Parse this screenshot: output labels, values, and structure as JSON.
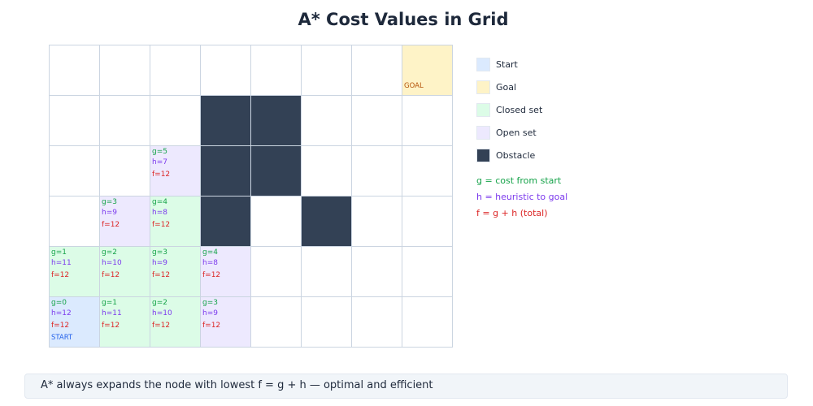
{
  "title": "A* Cost Values in Grid",
  "colors": {
    "start": "#dbeafe",
    "goal": "#fef3c7",
    "closed": "#dcfce7",
    "open": "#ede9fe",
    "obstacle": "#334155",
    "empty": "#ffffff",
    "g": "#16a34a",
    "h": "#7c3aed",
    "f": "#dc2626",
    "start_label": "#2563eb",
    "goal_label": "#b45309"
  },
  "grid": {
    "rows": 6,
    "cols": 8,
    "cells": [
      {
        "row": 0,
        "col": 7,
        "type": "goal",
        "label": "GOAL"
      },
      {
        "row": 1,
        "col": 3,
        "type": "obstacle"
      },
      {
        "row": 1,
        "col": 4,
        "type": "obstacle"
      },
      {
        "row": 2,
        "col": 2,
        "type": "open",
        "g": "g=5",
        "h": "h=7",
        "f": "f=12"
      },
      {
        "row": 2,
        "col": 3,
        "type": "obstacle"
      },
      {
        "row": 2,
        "col": 4,
        "type": "obstacle"
      },
      {
        "row": 3,
        "col": 1,
        "type": "open",
        "g": "g=3",
        "h": "h=9",
        "f": "f=12"
      },
      {
        "row": 3,
        "col": 2,
        "type": "closed",
        "g": "g=4",
        "h": "h=8",
        "f": "f=12"
      },
      {
        "row": 3,
        "col": 3,
        "type": "obstacle"
      },
      {
        "row": 3,
        "col": 5,
        "type": "obstacle"
      },
      {
        "row": 4,
        "col": 0,
        "type": "closed",
        "g": "g=1",
        "h": "h=11",
        "f": "f=12"
      },
      {
        "row": 4,
        "col": 1,
        "type": "closed",
        "g": "g=2",
        "h": "h=10",
        "f": "f=12"
      },
      {
        "row": 4,
        "col": 2,
        "type": "closed",
        "g": "g=3",
        "h": "h=9",
        "f": "f=12"
      },
      {
        "row": 4,
        "col": 3,
        "type": "open",
        "g": "g=4",
        "h": "h=8",
        "f": "f=12"
      },
      {
        "row": 5,
        "col": 0,
        "type": "start",
        "g": "g=0",
        "h": "h=12",
        "f": "f=12",
        "label": "START"
      },
      {
        "row": 5,
        "col": 1,
        "type": "closed",
        "g": "g=1",
        "h": "h=11",
        "f": "f=12"
      },
      {
        "row": 5,
        "col": 2,
        "type": "closed",
        "g": "g=2",
        "h": "h=10",
        "f": "f=12"
      },
      {
        "row": 5,
        "col": 3,
        "type": "open",
        "g": "g=3",
        "h": "h=9",
        "f": "f=12"
      }
    ]
  },
  "legend": {
    "items": [
      {
        "label": "Start",
        "type": "start"
      },
      {
        "label": "Goal",
        "type": "goal"
      },
      {
        "label": "Closed set",
        "type": "closed"
      },
      {
        "label": "Open set",
        "type": "open"
      },
      {
        "label": "Obstacle",
        "type": "obstacle"
      }
    ],
    "notes": {
      "g": "g = cost from start",
      "h": "h = heuristic to goal",
      "f": "f = g + h (total)"
    }
  },
  "footer": "A* always expands the node with lowest f = g + h — optimal and efficient"
}
